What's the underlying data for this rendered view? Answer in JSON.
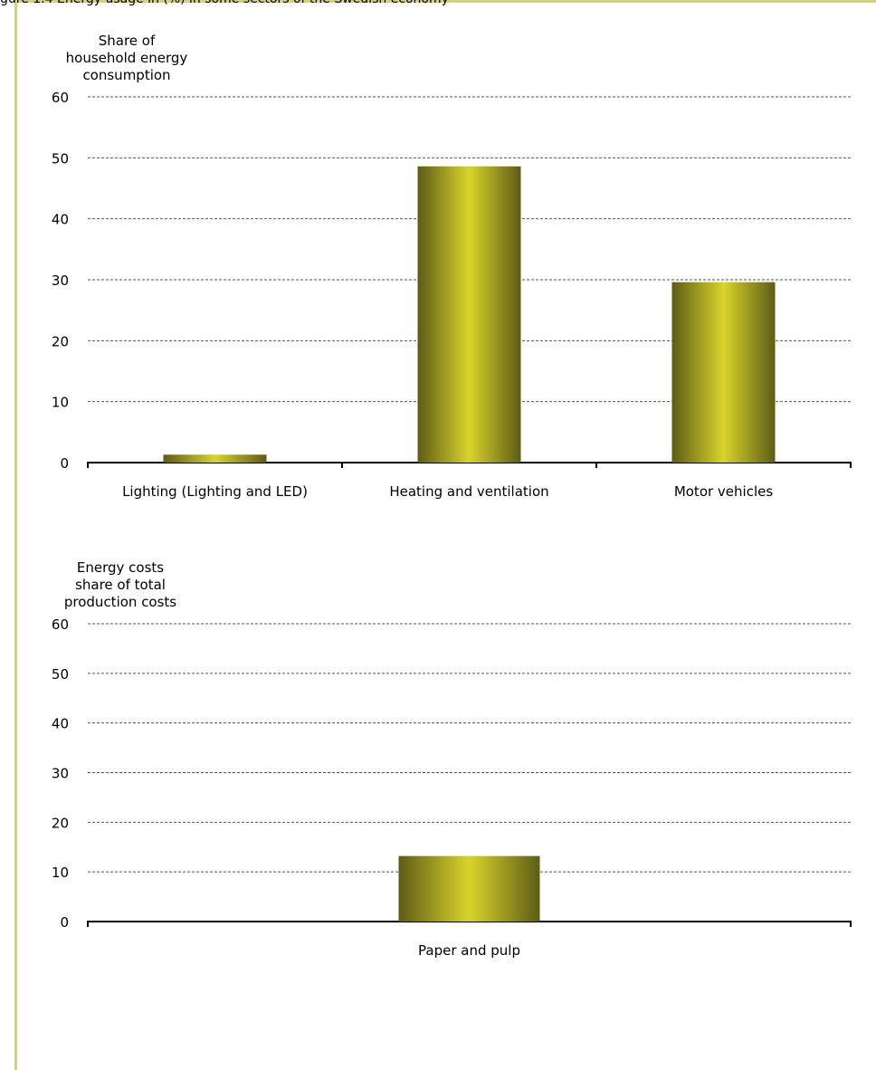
{
  "page": {
    "caption": "gure 1.4 Energy usage in (%) in some sectors of the Swedish economy"
  },
  "colors": {
    "frame": "#d6d07a",
    "bar_light": "#d9d42a",
    "bar_dark": "#5e5c16",
    "grid": "#555555"
  },
  "chart_data": [
    {
      "type": "bar",
      "title": "",
      "ylabel": "Share of\nhousehold energy\nconsumption",
      "xlabel": "",
      "ylim": [
        0,
        60
      ],
      "yticks": [
        0,
        10,
        20,
        30,
        40,
        50,
        60
      ],
      "grid": true,
      "categories": [
        "Lighting (Lighting and LED)",
        "Heating and ventilation",
        "Motor vehicles"
      ],
      "values": [
        1.3,
        48.6,
        29.6
      ]
    },
    {
      "type": "bar",
      "title": "",
      "ylabel": "Energy costs\nshare of total\nproduction costs",
      "xlabel": "",
      "ylim": [
        0,
        60
      ],
      "yticks": [
        0,
        10,
        20,
        30,
        40,
        50,
        60
      ],
      "grid": true,
      "categories": [
        "Paper and pulp"
      ],
      "values": [
        13.2
      ]
    }
  ]
}
